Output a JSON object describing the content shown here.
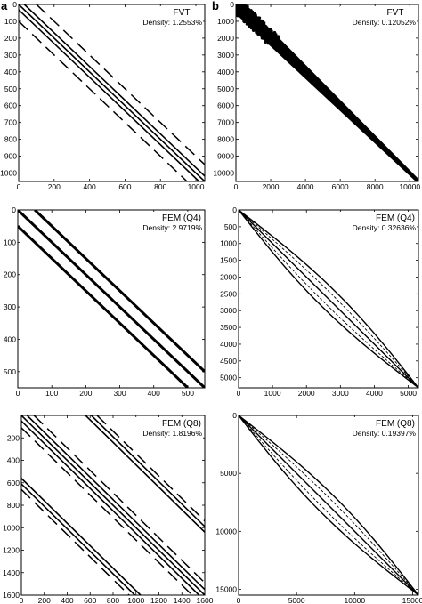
{
  "figure": {
    "panel_letters": [
      "a",
      "b"
    ]
  },
  "chart_data": [
    {
      "type": "scatter",
      "title": "FVT",
      "subtitle": "Density: 1.2553%",
      "xlim": [
        0,
        1050
      ],
      "ylim": [
        0,
        1050
      ],
      "xticks": [
        0,
        200,
        400,
        600,
        800,
        1000
      ],
      "yticks": [
        0,
        100,
        200,
        300,
        400,
        500,
        600,
        700,
        800,
        900,
        1000
      ],
      "ytick_labels": [
        "0",
        "100",
        "200",
        "300",
        "400",
        "500",
        "600",
        "700",
        "800",
        "900",
        "1000"
      ],
      "bands": [
        {
          "offset": 0,
          "style": "solid"
        },
        {
          "offset": 32,
          "style": "solid"
        },
        {
          "offset": -32,
          "style": "solid"
        },
        {
          "offset": 100,
          "style": "dashed"
        },
        {
          "offset": -100,
          "style": "dashed"
        }
      ]
    },
    {
      "type": "scatter",
      "title": "FVT",
      "subtitle": "Density: 0.12052%",
      "xlim": [
        0,
        10500
      ],
      "ylim": [
        0,
        10500
      ],
      "xticks": [
        0,
        2000,
        4000,
        6000,
        8000,
        10000
      ],
      "yticks": [
        0,
        1000,
        2000,
        3000,
        4000,
        5000,
        6000,
        7000,
        8000,
        9000,
        10000
      ],
      "ytick_labels": [
        "0",
        "1000",
        "2000",
        "3000",
        "4000",
        "5000",
        "6000",
        "7000",
        "8000",
        "9000",
        "10000"
      ],
      "band_halfwidth": 260
    },
    {
      "type": "scatter",
      "title": "FEM (Q4)",
      "subtitle": "Density: 2.9719%",
      "xlim": [
        0,
        550
      ],
      "ylim": [
        0,
        550
      ],
      "xticks": [
        0,
        100,
        200,
        300,
        400,
        500
      ],
      "yticks": [
        0,
        100,
        200,
        300,
        400,
        500
      ],
      "ytick_labels": [
        "0",
        "100",
        "200",
        "300",
        "400",
        "500"
      ],
      "bands": [
        {
          "offset": 0,
          "style": "thick"
        },
        {
          "offset": 50,
          "style": "thick"
        },
        {
          "offset": -50,
          "style": "thick"
        }
      ]
    },
    {
      "type": "scatter",
      "title": "FEM (Q4)",
      "subtitle": "Density: 0.32636%",
      "xlim": [
        0,
        5300
      ],
      "ylim": [
        0,
        5300
      ],
      "xticks": [
        0,
        1000,
        2000,
        3000,
        4000,
        5000
      ],
      "yticks": [
        0,
        500,
        1000,
        1500,
        2000,
        2500,
        3000,
        3500,
        4000,
        4500,
        5000
      ],
      "ytick_labels": [
        "0",
        "500",
        "1000",
        "1500",
        "2000",
        "2500",
        "3000",
        "3500",
        "4000",
        "4500",
        "5000"
      ],
      "envelope_max": 420
    },
    {
      "type": "scatter",
      "title": "FEM (Q8)",
      "subtitle": "Density: 1.8196%",
      "xlim": [
        0,
        1600
      ],
      "ylim": [
        0,
        1600
      ],
      "xticks": [
        0,
        200,
        400,
        600,
        800,
        1000,
        1200,
        1400,
        1600
      ],
      "yticks": [
        200,
        400,
        600,
        800,
        1000,
        1200,
        1400,
        1600
      ],
      "ytick_labels": [
        "200",
        "400",
        "600",
        "800",
        "1000",
        "1200",
        "1400",
        "1600"
      ],
      "bands": [
        {
          "offset": 0,
          "style": "solid"
        },
        {
          "offset": 50,
          "style": "solid"
        },
        {
          "offset": -50,
          "style": "solid"
        },
        {
          "offset": 110,
          "style": "dashed"
        },
        {
          "offset": -110,
          "style": "dashed"
        },
        {
          "offset": 560,
          "style": "solid"
        },
        {
          "offset": 610,
          "style": "solid"
        },
        {
          "offset": 660,
          "style": "dashed"
        },
        {
          "offset": -560,
          "style": "solid"
        },
        {
          "offset": -610,
          "style": "solid"
        },
        {
          "offset": -660,
          "style": "dashed"
        }
      ]
    },
    {
      "type": "scatter",
      "title": "FEM (Q8)",
      "subtitle": "Density: 0.19397%",
      "xlim": [
        0,
        15500
      ],
      "ylim": [
        0,
        15500
      ],
      "xticks": [
        0,
        5000,
        10000,
        15000
      ],
      "yticks": [
        0,
        5000,
        10000,
        15000
      ],
      "ytick_labels": [
        "0",
        "5000",
        "10000",
        "15000"
      ],
      "envelope_max": 1250
    }
  ]
}
